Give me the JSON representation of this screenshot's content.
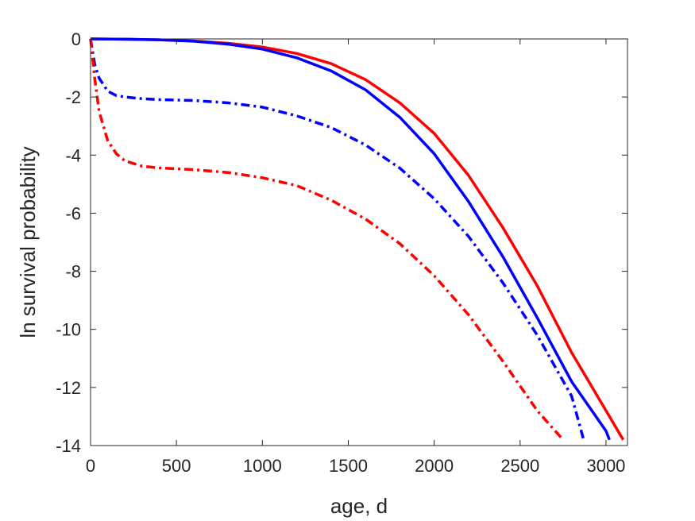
{
  "chart_data": {
    "type": "line",
    "title": "",
    "xlabel": "age, d",
    "ylabel": "ln survival probability",
    "xlim": [
      0,
      3125
    ],
    "ylim": [
      -14,
      0
    ],
    "xticks": [
      0,
      500,
      1000,
      1500,
      2000,
      2500,
      3000
    ],
    "yticks": [
      0,
      -2,
      -4,
      -6,
      -8,
      -10,
      -12,
      -14
    ],
    "grid": false,
    "legend": "none",
    "series": [
      {
        "color": "#ff0000",
        "style": "solid",
        "x": [
          0,
          200,
          400,
          600,
          800,
          1000,
          1200,
          1400,
          1600,
          1800,
          2000,
          2200,
          2400,
          2600,
          2800,
          3000,
          3100
        ],
        "y": [
          0,
          -0.01,
          -0.03,
          -0.07,
          -0.15,
          -0.28,
          -0.5,
          -0.85,
          -1.4,
          -2.2,
          -3.25,
          -4.7,
          -6.5,
          -8.5,
          -10.8,
          -12.8,
          -13.8
        ]
      },
      {
        "color": "#0000ff",
        "style": "solid",
        "x": [
          0,
          200,
          400,
          600,
          800,
          1000,
          1200,
          1400,
          1600,
          1800,
          2000,
          2200,
          2400,
          2600,
          2800,
          3000,
          3020
        ],
        "y": [
          0,
          -0.01,
          -0.03,
          -0.08,
          -0.18,
          -0.35,
          -0.65,
          -1.1,
          -1.75,
          -2.7,
          -3.95,
          -5.6,
          -7.5,
          -9.6,
          -11.8,
          -13.5,
          -13.8
        ]
      },
      {
        "color": "#0000ff",
        "style": "dash-dot",
        "x": [
          0,
          25,
          50,
          100,
          150,
          200,
          300,
          400,
          600,
          800,
          1000,
          1200,
          1400,
          1600,
          1800,
          2000,
          2200,
          2400,
          2600,
          2800,
          2870
        ],
        "y": [
          0,
          -0.9,
          -1.35,
          -1.8,
          -1.95,
          -2.0,
          -2.06,
          -2.09,
          -2.12,
          -2.2,
          -2.35,
          -2.65,
          -3.05,
          -3.65,
          -4.45,
          -5.5,
          -6.8,
          -8.4,
          -10.2,
          -12.3,
          -13.8
        ]
      },
      {
        "color": "#ff0000",
        "style": "dash-dot",
        "x": [
          0,
          25,
          50,
          100,
          150,
          200,
          300,
          400,
          600,
          800,
          1000,
          1200,
          1400,
          1600,
          1800,
          2000,
          2200,
          2400,
          2600,
          2750
        ],
        "y": [
          0,
          -1.4,
          -2.5,
          -3.5,
          -3.95,
          -4.2,
          -4.38,
          -4.44,
          -4.5,
          -4.6,
          -4.78,
          -5.05,
          -5.55,
          -6.2,
          -7.05,
          -8.15,
          -9.5,
          -11.1,
          -12.8,
          -13.8
        ]
      }
    ]
  }
}
